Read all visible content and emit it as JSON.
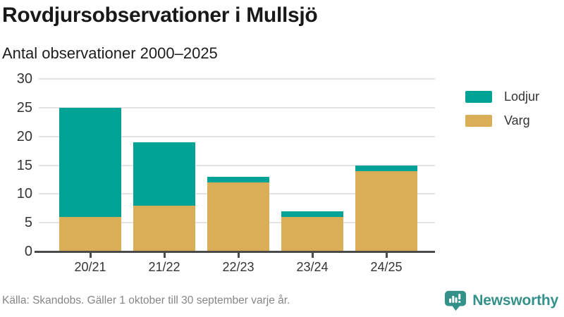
{
  "header": {
    "title": "Rovdjursobservationer i Mullsjö",
    "subtitle": "Antal observationer 2000–2025"
  },
  "chart_data": {
    "type": "bar",
    "stacked": true,
    "title": "Rovdjursobservationer i Mullsjö",
    "subtitle": "Antal observationer 2000–2025",
    "categories": [
      "20/21",
      "21/22",
      "22/23",
      "23/24",
      "24/25"
    ],
    "series": [
      {
        "name": "Lodjur",
        "color": "#00A396",
        "values": [
          19,
          11,
          1,
          1,
          1
        ]
      },
      {
        "name": "Varg",
        "color": "#D9AE56",
        "values": [
          6,
          8,
          12,
          6,
          14
        ]
      }
    ],
    "stack_totals": [
      25,
      19,
      13,
      7,
      15
    ],
    "ylim": [
      0,
      30
    ],
    "yticks": [
      0,
      5,
      10,
      15,
      20,
      25,
      30
    ],
    "grid": true,
    "legend_position": "right"
  },
  "footer": {
    "source": "Källa: Skandobs. Gäller 1 oktober till 30 september varje år.",
    "brand": "Newsworthy"
  },
  "colors": {
    "lodjur": "#00A396",
    "varg": "#D9AE56",
    "axis": "#4A4A4A",
    "grid": "#E4E4E4",
    "tick_label": "#333333",
    "title": "#191919",
    "source_text": "#868686",
    "brand": "#33918A"
  }
}
